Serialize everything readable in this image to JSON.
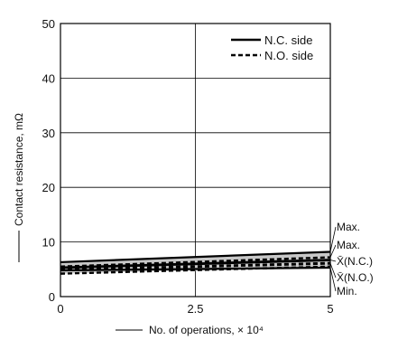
{
  "chart_data": {
    "type": "line",
    "title": "",
    "xlabel": "No. of operations, × 10⁴",
    "ylabel": "Contact resistance, mΩ",
    "xlim": [
      0,
      5
    ],
    "ylim": [
      0,
      50
    ],
    "x_ticks": [
      "0",
      "2.5",
      "5"
    ],
    "y_ticks": [
      "0",
      "10",
      "20",
      "30",
      "40",
      "50"
    ],
    "grid": "major gridlines at x = 2.5 and y = 10, 20, 30, 40",
    "legend_position": "top-right",
    "legend": [
      "N.C. side",
      "N.O. side"
    ],
    "series": [
      {
        "name": "N.C. side",
        "style": "solid",
        "x": [
          0,
          5
        ],
        "max": [
          6.3,
          8.2
        ],
        "avg": [
          5.3,
          6.7
        ],
        "min": [
          4.8,
          5.3
        ]
      },
      {
        "name": "N.O. side",
        "style": "dashed",
        "x": [
          0,
          5
        ],
        "max": [
          5.5,
          7.2
        ],
        "avg": [
          4.9,
          6.1
        ],
        "min": [
          4.2,
          5.5
        ]
      }
    ],
    "annotations": [
      "Max.",
      "Max.",
      "X̄(N.C.)",
      "X̄(N.O.)",
      "Min."
    ],
    "band_fill": "#c8c8c8"
  }
}
